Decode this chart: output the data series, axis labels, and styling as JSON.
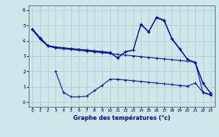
{
  "xlabel": "Graphe des températures (°c)",
  "background_color": "#cce8e8",
  "grid_color": "#aad0d0",
  "line_color": "#0000bb",
  "x_ticks": [
    0,
    1,
    2,
    3,
    4,
    5,
    6,
    7,
    8,
    9,
    10,
    11,
    12,
    13,
    14,
    15,
    16,
    17,
    18,
    19,
    20,
    21,
    22,
    23
  ],
  "y_ticks": [
    0,
    1,
    2,
    3,
    4,
    5,
    6
  ],
  "xlim": [
    -0.5,
    23.5
  ],
  "ylim": [
    -0.3,
    6.3
  ],
  "series": {
    "line1": {
      "x": [
        0,
        1,
        2,
        3,
        4,
        5,
        6,
        7,
        8,
        9,
        10,
        11,
        12,
        13,
        14,
        15,
        16,
        17,
        18,
        19,
        20,
        21,
        22,
        23
      ],
      "y": [
        4.8,
        4.2,
        3.7,
        3.6,
        3.55,
        3.5,
        3.45,
        3.4,
        3.35,
        3.3,
        3.25,
        2.9,
        3.3,
        3.4,
        5.1,
        4.6,
        5.55,
        5.35,
        4.15,
        3.5,
        2.8,
        2.6,
        1.25,
        0.6
      ]
    },
    "line2": {
      "x": [
        0,
        1,
        2,
        3,
        4,
        5,
        6,
        7,
        8,
        9,
        10,
        11,
        12,
        13,
        14,
        15,
        16,
        17,
        18,
        19,
        20,
        21,
        22,
        23
      ],
      "y": [
        4.75,
        4.15,
        3.68,
        3.58,
        3.52,
        3.47,
        3.43,
        3.38,
        3.33,
        3.28,
        3.22,
        2.88,
        3.28,
        3.38,
        5.05,
        4.57,
        5.5,
        5.28,
        4.1,
        3.45,
        2.78,
        2.57,
        1.22,
        0.57
      ]
    },
    "line3": {
      "x": [
        0,
        1,
        2,
        3,
        4,
        5,
        6,
        7,
        8,
        9,
        10,
        11,
        12,
        13,
        14,
        15,
        16,
        17,
        18,
        19,
        20,
        21,
        22,
        23
      ],
      "y": [
        4.72,
        4.1,
        3.65,
        3.53,
        3.48,
        3.43,
        3.38,
        3.33,
        3.28,
        3.22,
        3.17,
        3.12,
        3.07,
        3.02,
        2.97,
        2.92,
        2.87,
        2.82,
        2.77,
        2.72,
        2.67,
        2.62,
        0.62,
        0.47
      ]
    },
    "line4": {
      "x": [
        3,
        4,
        5,
        6,
        7,
        8,
        9,
        10,
        11,
        12,
        13,
        14,
        15,
        16,
        17,
        18,
        19,
        20,
        21,
        22,
        23
      ],
      "y": [
        2.0,
        0.65,
        0.35,
        0.35,
        0.4,
        0.75,
        1.1,
        1.5,
        1.5,
        1.45,
        1.4,
        1.35,
        1.3,
        1.25,
        1.2,
        1.15,
        1.1,
        1.05,
        1.25,
        0.65,
        0.5
      ]
    }
  }
}
